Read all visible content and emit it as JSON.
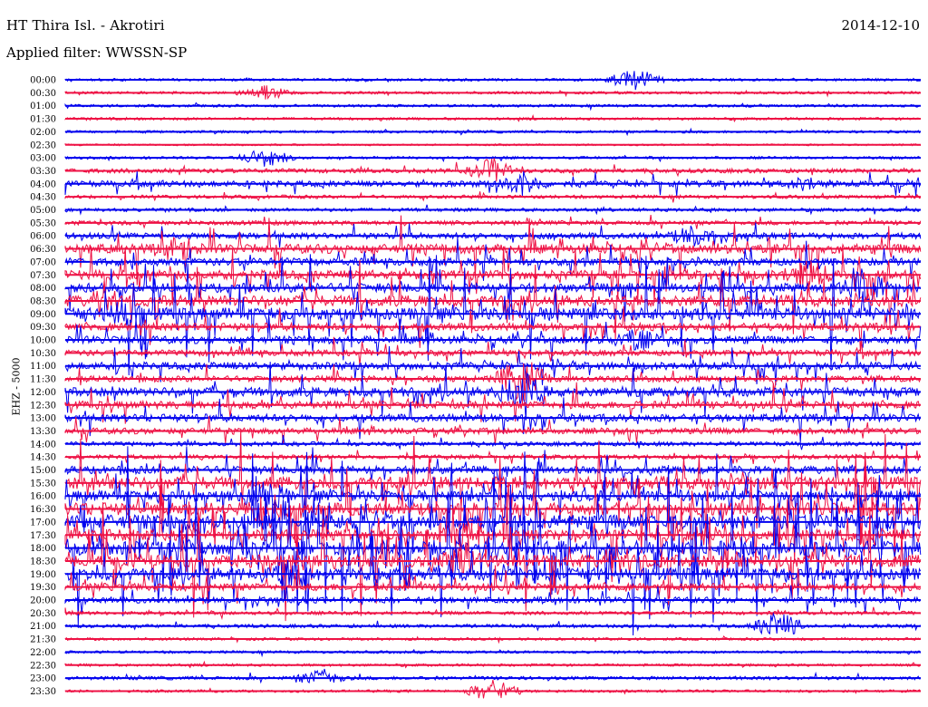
{
  "header": {
    "station": "HT Thira Isl. - Akrotiri",
    "date": "2014-12-10",
    "filter": "Applied filter: WWSSN-SP"
  },
  "chart_data": {
    "type": "line",
    "ylabel": "EHZ - 5000",
    "colors": {
      "even_trace": "#0000ee",
      "odd_trace": "#ee1144"
    },
    "times": [
      "00:00",
      "00:30",
      "01:00",
      "01:30",
      "02:00",
      "02:30",
      "03:00",
      "03:30",
      "04:00",
      "04:30",
      "05:00",
      "05:30",
      "06:00",
      "06:30",
      "07:00",
      "07:30",
      "08:00",
      "08:30",
      "09:00",
      "09:30",
      "10:00",
      "10:30",
      "11:00",
      "11:30",
      "12:00",
      "12:30",
      "13:00",
      "13:30",
      "14:00",
      "14:30",
      "15:00",
      "15:30",
      "16:00",
      "16:30",
      "17:00",
      "17:30",
      "18:00",
      "18:30",
      "19:00",
      "19:30",
      "20:00",
      "20:30",
      "21:00",
      "21:30",
      "22:00",
      "22:30",
      "23:00",
      "23:30"
    ],
    "activity_level": [
      1,
      1,
      1,
      1,
      1,
      0.5,
      1,
      2,
      3,
      1.5,
      1.5,
      2,
      3,
      5,
      4,
      5,
      5,
      6,
      7,
      4,
      4,
      3,
      4,
      3,
      5,
      4,
      4,
      3,
      2,
      2,
      4,
      7,
      6,
      7,
      8,
      6,
      8,
      7,
      7,
      4,
      3,
      1.5,
      1.5,
      1,
      1,
      1,
      1.5,
      1
    ],
    "events": [
      {
        "time": "00:00",
        "minute": 20,
        "amplitude": 12
      },
      {
        "time": "00:30",
        "minute": 7,
        "amplitude": 8
      },
      {
        "time": "03:00",
        "minute": 7,
        "amplitude": 10
      },
      {
        "time": "03:30",
        "minute": 15,
        "amplitude": 14
      },
      {
        "time": "04:00",
        "minute": 16,
        "amplitude": 14
      },
      {
        "time": "04:00",
        "minute": 26,
        "amplitude": 8
      },
      {
        "time": "06:00",
        "minute": 22,
        "amplitude": 12
      },
      {
        "time": "06:30",
        "minute": 4,
        "amplitude": 16
      },
      {
        "time": "07:30",
        "minute": 26,
        "amplitude": 20
      },
      {
        "time": "08:00",
        "minute": 28,
        "amplitude": 22
      },
      {
        "time": "09:00",
        "minute": 2,
        "amplitude": 18
      },
      {
        "time": "10:00",
        "minute": 20,
        "amplitude": 14
      },
      {
        "time": "11:30",
        "minute": 16,
        "amplitude": 26
      },
      {
        "time": "12:00",
        "minute": 16,
        "amplitude": 24
      },
      {
        "time": "16:00",
        "minute": 7,
        "amplitude": 22
      },
      {
        "time": "16:30",
        "minute": 7,
        "amplitude": 24
      },
      {
        "time": "17:30",
        "minute": 14,
        "amplitude": 18
      },
      {
        "time": "18:30",
        "minute": 14,
        "amplitude": 22
      },
      {
        "time": "19:00",
        "minute": 8,
        "amplitude": 18
      },
      {
        "time": "21:00",
        "minute": 25,
        "amplitude": 16
      },
      {
        "time": "23:00",
        "minute": 9,
        "amplitude": 10
      },
      {
        "time": "23:30",
        "minute": 15,
        "amplitude": 12
      }
    ]
  }
}
